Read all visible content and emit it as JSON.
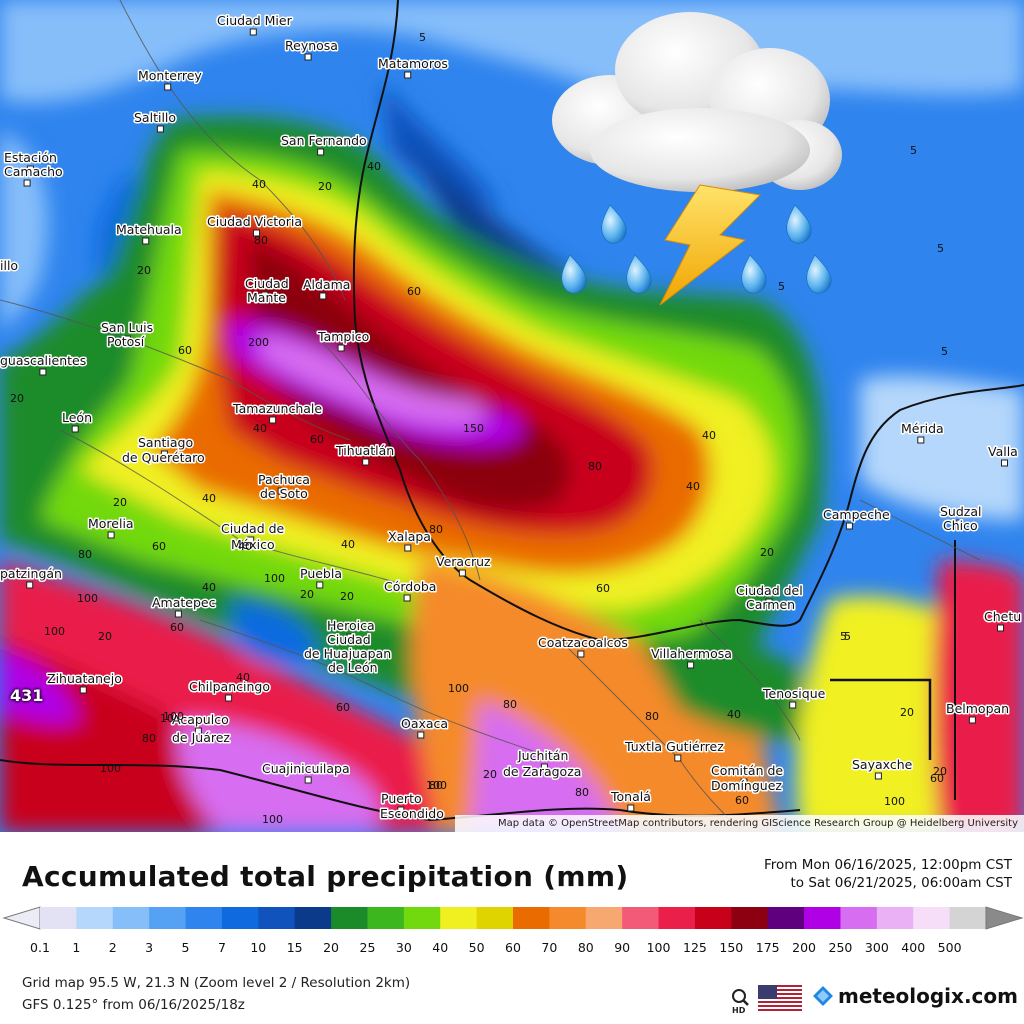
{
  "map": {
    "attribution": "Map data © OpenStreetMap contributors, rendering GIScience Research Group @ Heidelberg University",
    "max_value_label": "431",
    "icon": "thunderstorm-rain-icon",
    "cities": [
      {
        "name": "Ciudad Mier"
      },
      {
        "name": "Reynosa"
      },
      {
        "name": "Matamoros"
      },
      {
        "name": "Monterrey"
      },
      {
        "name": "Saltillo"
      },
      {
        "name": "San Fernando"
      },
      {
        "name": "Estación"
      },
      {
        "name": "Camacho"
      },
      {
        "name": "Matehuala"
      },
      {
        "name": "Ciudad Victoria"
      },
      {
        "name": "illo"
      },
      {
        "name": "Ciudad"
      },
      {
        "name": "Mante"
      },
      {
        "name": "Aldama"
      },
      {
        "name": "San Luis"
      },
      {
        "name": "Potosí"
      },
      {
        "name": "Tampico"
      },
      {
        "name": "guascalientes"
      },
      {
        "name": "León"
      },
      {
        "name": "Tamazunchale"
      },
      {
        "name": "Santiago"
      },
      {
        "name": "de Querétaro"
      },
      {
        "name": "Tihuatlán"
      },
      {
        "name": "Pachuca"
      },
      {
        "name": "de Soto"
      },
      {
        "name": "Morelia"
      },
      {
        "name": "Ciudad de"
      },
      {
        "name": "México"
      },
      {
        "name": "Xalapa"
      },
      {
        "name": "Veracruz"
      },
      {
        "name": "patzingán"
      },
      {
        "name": "Puebla"
      },
      {
        "name": "Córdoba"
      },
      {
        "name": "Amatepec"
      },
      {
        "name": "Heroica"
      },
      {
        "name": "Ciudad"
      },
      {
        "name": "de Huajuapan"
      },
      {
        "name": "de León"
      },
      {
        "name": "Zihuatanejo"
      },
      {
        "name": "Chilpancingo"
      },
      {
        "name": "Acapulco"
      },
      {
        "name": "de Juárez"
      },
      {
        "name": "Oaxaca"
      },
      {
        "name": "Cuajinicuilapa"
      },
      {
        "name": "Juchitán"
      },
      {
        "name": "de Zaragoza"
      },
      {
        "name": "Puerto"
      },
      {
        "name": "Escondido"
      },
      {
        "name": "Coatzacoalcos"
      },
      {
        "name": "Villahermosa"
      },
      {
        "name": "Ciudad del"
      },
      {
        "name": "Carmen"
      },
      {
        "name": "Campeche"
      },
      {
        "name": "Mérida"
      },
      {
        "name": "Valla"
      },
      {
        "name": "Sudzal"
      },
      {
        "name": "Chico"
      },
      {
        "name": "Tenosique"
      },
      {
        "name": "Tuxtla Gutiérrez"
      },
      {
        "name": "Comitán de"
      },
      {
        "name": "Domínguez"
      },
      {
        "name": "Tonalá"
      },
      {
        "name": "Sayaxche"
      },
      {
        "name": "Belmopan"
      },
      {
        "name": "Chetu"
      }
    ],
    "isolines": [
      {
        "text": "5"
      },
      {
        "text": "5"
      },
      {
        "text": "5"
      },
      {
        "text": "5"
      },
      {
        "text": "5"
      },
      {
        "text": "5"
      },
      {
        "text": "40"
      },
      {
        "text": "20"
      },
      {
        "text": "40"
      },
      {
        "text": "80"
      },
      {
        "text": "20"
      },
      {
        "text": "60"
      },
      {
        "text": "60"
      },
      {
        "text": "200"
      },
      {
        "text": "20"
      },
      {
        "text": "150"
      },
      {
        "text": "80"
      },
      {
        "text": "40"
      },
      {
        "text": "40"
      },
      {
        "text": "60"
      },
      {
        "text": "40"
      },
      {
        "text": "20"
      },
      {
        "text": "80"
      },
      {
        "text": "40"
      },
      {
        "text": "60"
      },
      {
        "text": "100"
      },
      {
        "text": "40"
      },
      {
        "text": "60"
      },
      {
        "text": "20"
      },
      {
        "text": "20"
      },
      {
        "text": "80"
      },
      {
        "text": "100"
      },
      {
        "text": "60"
      },
      {
        "text": "20"
      },
      {
        "text": "100"
      },
      {
        "text": "100"
      },
      {
        "text": "80"
      },
      {
        "text": "100"
      },
      {
        "text": "40"
      },
      {
        "text": "60"
      },
      {
        "text": "100"
      },
      {
        "text": "80"
      },
      {
        "text": "80"
      },
      {
        "text": "100"
      },
      {
        "text": "100"
      },
      {
        "text": "80"
      },
      {
        "text": "20"
      },
      {
        "text": "80"
      },
      {
        "text": "40"
      },
      {
        "text": "40"
      },
      {
        "text": "20"
      },
      {
        "text": "20"
      },
      {
        "text": "60"
      },
      {
        "text": "40"
      },
      {
        "text": "100"
      },
      {
        "text": "60"
      },
      {
        "text": "10"
      },
      {
        "text": "5"
      },
      {
        "text": "20"
      }
    ]
  },
  "header": {
    "title": "Accumulated total precipitation (mm)",
    "period_from": "From Mon 06/16/2025, 12:00pm CST",
    "period_to": "to Sat 06/21/2025, 06:00am CST"
  },
  "legend": {
    "labels": [
      "0.1",
      "1",
      "2",
      "3",
      "5",
      "7",
      "10",
      "15",
      "20",
      "25",
      "30",
      "40",
      "50",
      "60",
      "70",
      "80",
      "90",
      "100",
      "125",
      "150",
      "175",
      "200",
      "250",
      "300",
      "400",
      "500"
    ],
    "colors": [
      "#e2e2f4",
      "#b4d7fb",
      "#86befa",
      "#55a2f4",
      "#2f84ee",
      "#0f6ae0",
      "#1053bd",
      "#0c3a8a",
      "#1b8b2a",
      "#3cb81e",
      "#72d90e",
      "#f0f020",
      "#e0d400",
      "#ea6c00",
      "#f58a2c",
      "#f7a870",
      "#f25a77",
      "#ea1f4a",
      "#c9001a",
      "#8c0011",
      "#5f007f",
      "#b000e6",
      "#d76df0",
      "#eab1f5",
      "#f6def9",
      "#d4d4d4"
    ],
    "end_color_left": "#ececf7",
    "end_color_right": "#8a8a8a"
  },
  "footer": {
    "grid_info": "Grid map 95.5 W, 21.3 N (Zoom level 2 / Resolution 2km)",
    "model_info": "GFS 0.125° from 06/16/2025/18z",
    "hd_icon": "magnifier-hd-icon",
    "flag_icon": "us-flag-icon",
    "brand_icon": "meteologix-logo-icon",
    "brand": "meteologix.com"
  }
}
